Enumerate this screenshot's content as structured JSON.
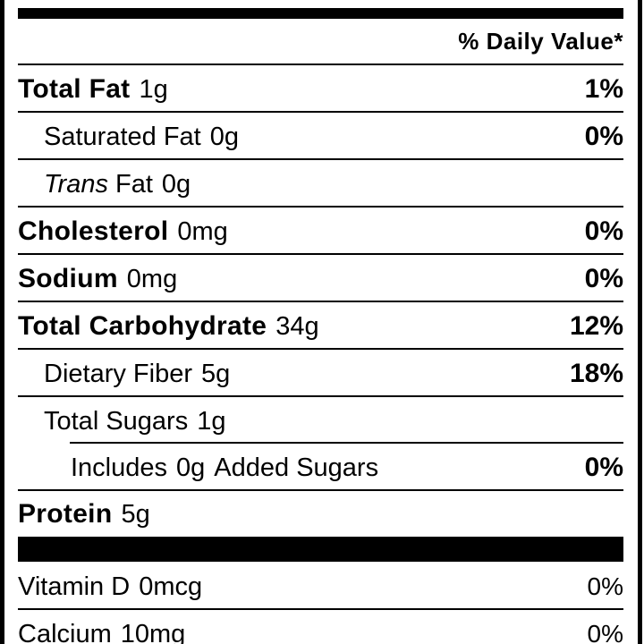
{
  "header": {
    "daily_value_label": "% Daily Value*"
  },
  "rows": [
    {
      "name": "Total Fat",
      "amount": "1g",
      "dv": "1%"
    },
    {
      "name": "Saturated Fat",
      "amount": "0g",
      "dv": "0%"
    },
    {
      "name_italic": "Trans",
      "name": "Fat",
      "amount": "0g",
      "dv": ""
    },
    {
      "name": "Cholesterol",
      "amount": "0mg",
      "dv": "0%"
    },
    {
      "name": "Sodium",
      "amount": "0mg",
      "dv": "0%"
    },
    {
      "name": "Total Carbohydrate",
      "amount": "34g",
      "dv": "12%"
    },
    {
      "name": "Dietary Fiber",
      "amount": "5g",
      "dv": "18%"
    },
    {
      "name": "Total Sugars",
      "amount": "1g",
      "dv": ""
    },
    {
      "prefix": "Includes",
      "amount": "0g",
      "name": "Added Sugars",
      "dv": "0%"
    },
    {
      "name": "Protein",
      "amount": "5g",
      "dv": ""
    }
  ],
  "vitamins": [
    {
      "name": "Vitamin D",
      "amount": "0mcg",
      "dv": "0%"
    },
    {
      "name": "Calcium",
      "amount": "10mg",
      "dv": "0%"
    }
  ]
}
